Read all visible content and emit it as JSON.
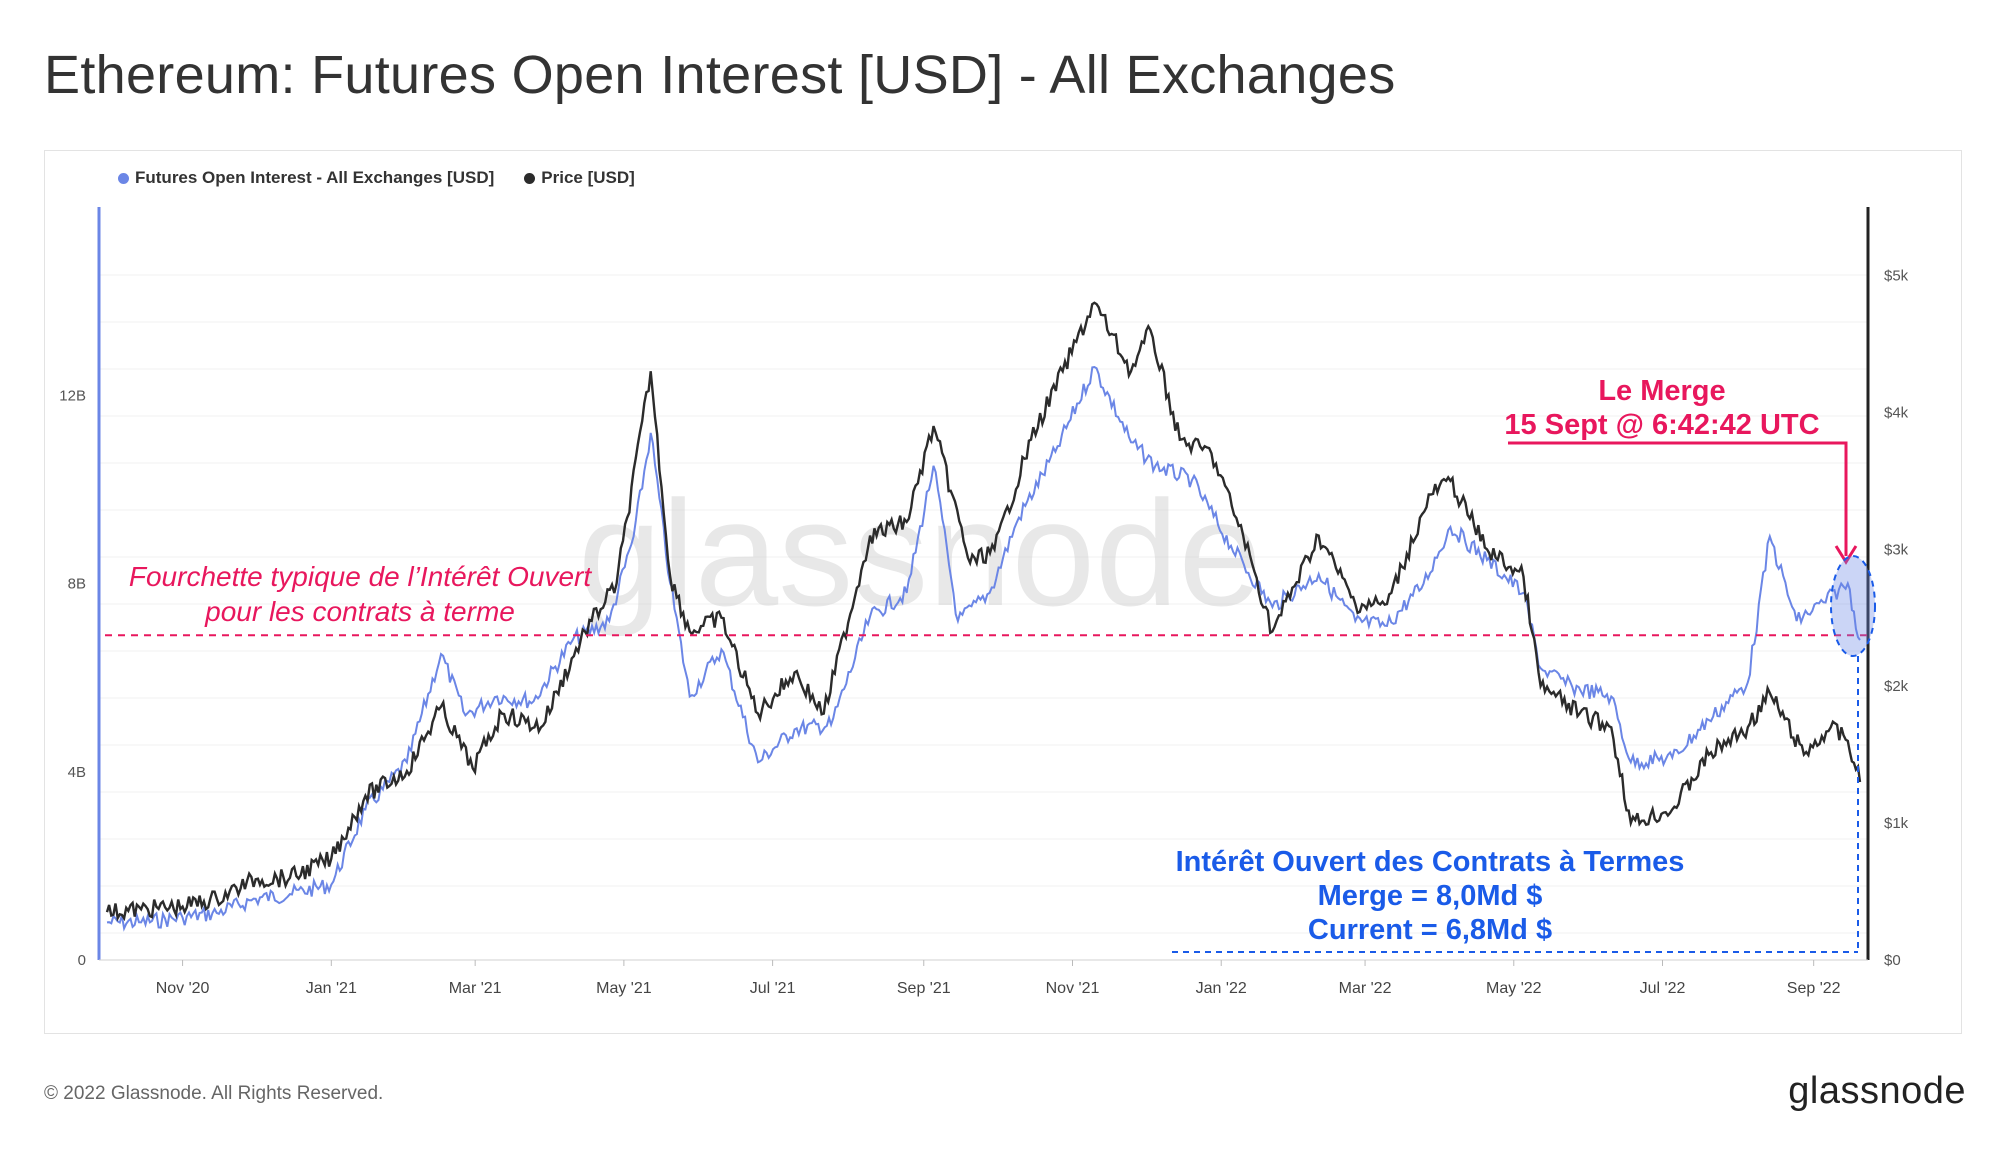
{
  "title": "Ethereum: Futures Open Interest [USD] - All Exchanges",
  "footer": "© 2022 Glassnode. All Rights Reserved.",
  "brand": "glassnode",
  "watermark": "glassnode",
  "colors": {
    "oi": "#6b86e6",
    "price": "#2b2b2b",
    "annotation_pink": "#e8175d",
    "annotation_blue": "#1a5be8"
  },
  "legend": [
    {
      "label": "Futures Open Interest - All Exchanges [USD]",
      "color": "#6b86e6"
    },
    {
      "label": "Price [USD]",
      "color": "#2b2b2b"
    }
  ],
  "annotations": {
    "range_text_line1": "Fourchette typique de l’Intérêt Ouvert",
    "range_text_line2": "pour les contrats à terme",
    "merge_line1": "Le Merge",
    "merge_line2": "15 Sept @ 6:42:42 UTC",
    "oi_line1": "Intérêt Ouvert des Contrats à Termes",
    "oi_line2": "Merge = 8,0Md $",
    "oi_line3": "Current = 6,8Md $"
  },
  "chart_data": {
    "type": "line",
    "x_tick_labels": [
      "Nov '20",
      "Jan '21",
      "Mar '21",
      "May '21",
      "Jul '21",
      "Sep '21",
      "Nov '21",
      "Jan '22",
      "Mar '22",
      "May '22",
      "Jul '22",
      "Sep '22"
    ],
    "x_range": [
      "2020-10-01",
      "2022-09-20"
    ],
    "y_left": {
      "label": "",
      "ticks": [
        "0",
        "4B",
        "8B",
        "12B"
      ],
      "tick_values": [
        0,
        4000000000,
        8000000000,
        12000000000
      ],
      "range": [
        0,
        16000000000
      ]
    },
    "y_right": {
      "label": "",
      "ticks": [
        "$0",
        "$1k",
        "$2k",
        "$3k",
        "$4k",
        "$5k"
      ],
      "tick_values": [
        0,
        1000,
        2000,
        3000,
        4000,
        5000
      ],
      "range": [
        0,
        5500
      ]
    },
    "typical_range_level": 6900000000,
    "series": [
      {
        "name": "Futures Open Interest - All Exchanges [USD]",
        "axis": "left",
        "points": [
          [
            "2020-10-01",
            800000000.0
          ],
          [
            "2020-10-15",
            800000000.0
          ],
          [
            "2020-11-01",
            900000000.0
          ],
          [
            "2020-11-15",
            1000000000.0
          ],
          [
            "2020-12-01",
            1300000000.0
          ],
          [
            "2020-12-15",
            1400000000.0
          ],
          [
            "2021-01-01",
            1600000000.0
          ],
          [
            "2021-01-15",
            3200000000.0
          ],
          [
            "2021-02-01",
            4200000000.0
          ],
          [
            "2021-02-15",
            6500000000.0
          ],
          [
            "2021-02-25",
            5200000000.0
          ],
          [
            "2021-03-10",
            5600000000.0
          ],
          [
            "2021-03-25",
            5500000000.0
          ],
          [
            "2021-04-10",
            6800000000.0
          ],
          [
            "2021-04-25",
            7200000000.0
          ],
          [
            "2021-05-05",
            9000000000.0
          ],
          [
            "2021-05-12",
            11200000000.0
          ],
          [
            "2021-05-20",
            8000000000.0
          ],
          [
            "2021-05-28",
            5600000000.0
          ],
          [
            "2021-06-10",
            6600000000.0
          ],
          [
            "2021-06-25",
            4200000000.0
          ],
          [
            "2021-07-10",
            4900000000.0
          ],
          [
            "2021-07-25",
            5000000000.0
          ],
          [
            "2021-08-10",
            7300000000.0
          ],
          [
            "2021-08-25",
            7800000000.0
          ],
          [
            "2021-09-05",
            10500000000.0
          ],
          [
            "2021-09-15",
            7200000000.0
          ],
          [
            "2021-09-28",
            7800000000.0
          ],
          [
            "2021-10-10",
            9400000000.0
          ],
          [
            "2021-10-25",
            10800000000.0
          ],
          [
            "2021-11-10",
            12600000000.0
          ],
          [
            "2021-11-25",
            11000000000.0
          ],
          [
            "2021-12-05",
            10500000000.0
          ],
          [
            "2021-12-20",
            10200000000.0
          ],
          [
            "2022-01-05",
            8800000000.0
          ],
          [
            "2022-01-22",
            7500000000.0
          ],
          [
            "2022-02-10",
            8200000000.0
          ],
          [
            "2022-02-25",
            7200000000.0
          ],
          [
            "2022-03-10",
            7100000000.0
          ],
          [
            "2022-03-25",
            8000000000.0
          ],
          [
            "2022-04-05",
            9200000000.0
          ],
          [
            "2022-04-20",
            8500000000.0
          ],
          [
            "2022-05-05",
            7800000000.0
          ],
          [
            "2022-05-12",
            6200000000.0
          ],
          [
            "2022-05-25",
            5800000000.0
          ],
          [
            "2022-06-10",
            5600000000.0
          ],
          [
            "2022-06-18",
            4200000000.0
          ],
          [
            "2022-07-05",
            4300000000.0
          ],
          [
            "2022-07-20",
            5100000000.0
          ],
          [
            "2022-08-05",
            5900000000.0
          ],
          [
            "2022-08-14",
            9000000000.0
          ],
          [
            "2022-08-25",
            7200000000.0
          ],
          [
            "2022-09-05",
            7600000000.0
          ],
          [
            "2022-09-15",
            8000000000.0
          ],
          [
            "2022-09-20",
            6800000000.0
          ]
        ]
      },
      {
        "name": "Price [USD]",
        "axis": "right",
        "points": [
          [
            "2020-10-01",
            350
          ],
          [
            "2020-10-15",
            370
          ],
          [
            "2020-11-01",
            390
          ],
          [
            "2020-11-15",
            450
          ],
          [
            "2020-12-01",
            590
          ],
          [
            "2020-12-15",
            600
          ],
          [
            "2021-01-01",
            740
          ],
          [
            "2021-01-15",
            1200
          ],
          [
            "2021-02-01",
            1380
          ],
          [
            "2021-02-15",
            1850
          ],
          [
            "2021-02-28",
            1400
          ],
          [
            "2021-03-12",
            1800
          ],
          [
            "2021-03-28",
            1700
          ],
          [
            "2021-04-15",
            2400
          ],
          [
            "2021-04-28",
            2750
          ],
          [
            "2021-05-12",
            4300
          ],
          [
            "2021-05-20",
            2800
          ],
          [
            "2021-05-28",
            2400
          ],
          [
            "2021-06-10",
            2500
          ],
          [
            "2021-06-25",
            1800
          ],
          [
            "2021-07-10",
            2100
          ],
          [
            "2021-07-22",
            1800
          ],
          [
            "2021-08-10",
            3100
          ],
          [
            "2021-08-25",
            3200
          ],
          [
            "2021-09-05",
            3900
          ],
          [
            "2021-09-20",
            2900
          ],
          [
            "2021-09-30",
            3000
          ],
          [
            "2021-10-15",
            3800
          ],
          [
            "2021-10-28",
            4300
          ],
          [
            "2021-11-10",
            4800
          ],
          [
            "2021-11-25",
            4300
          ],
          [
            "2021-12-03",
            4600
          ],
          [
            "2021-12-15",
            3800
          ],
          [
            "2021-12-28",
            3700
          ],
          [
            "2022-01-10",
            3100
          ],
          [
            "2022-01-22",
            2400
          ],
          [
            "2022-02-10",
            3100
          ],
          [
            "2022-02-25",
            2600
          ],
          [
            "2022-03-10",
            2600
          ],
          [
            "2022-03-28",
            3400
          ],
          [
            "2022-04-05",
            3500
          ],
          [
            "2022-04-20",
            3000
          ],
          [
            "2022-05-05",
            2800
          ],
          [
            "2022-05-12",
            2000
          ],
          [
            "2022-05-28",
            1800
          ],
          [
            "2022-06-10",
            1700
          ],
          [
            "2022-06-18",
            1000
          ],
          [
            "2022-07-05",
            1100
          ],
          [
            "2022-07-20",
            1500
          ],
          [
            "2022-08-05",
            1700
          ],
          [
            "2022-08-14",
            1950
          ],
          [
            "2022-08-28",
            1500
          ],
          [
            "2022-09-08",
            1700
          ],
          [
            "2022-09-15",
            1600
          ],
          [
            "2022-09-20",
            1300
          ]
        ]
      }
    ]
  }
}
